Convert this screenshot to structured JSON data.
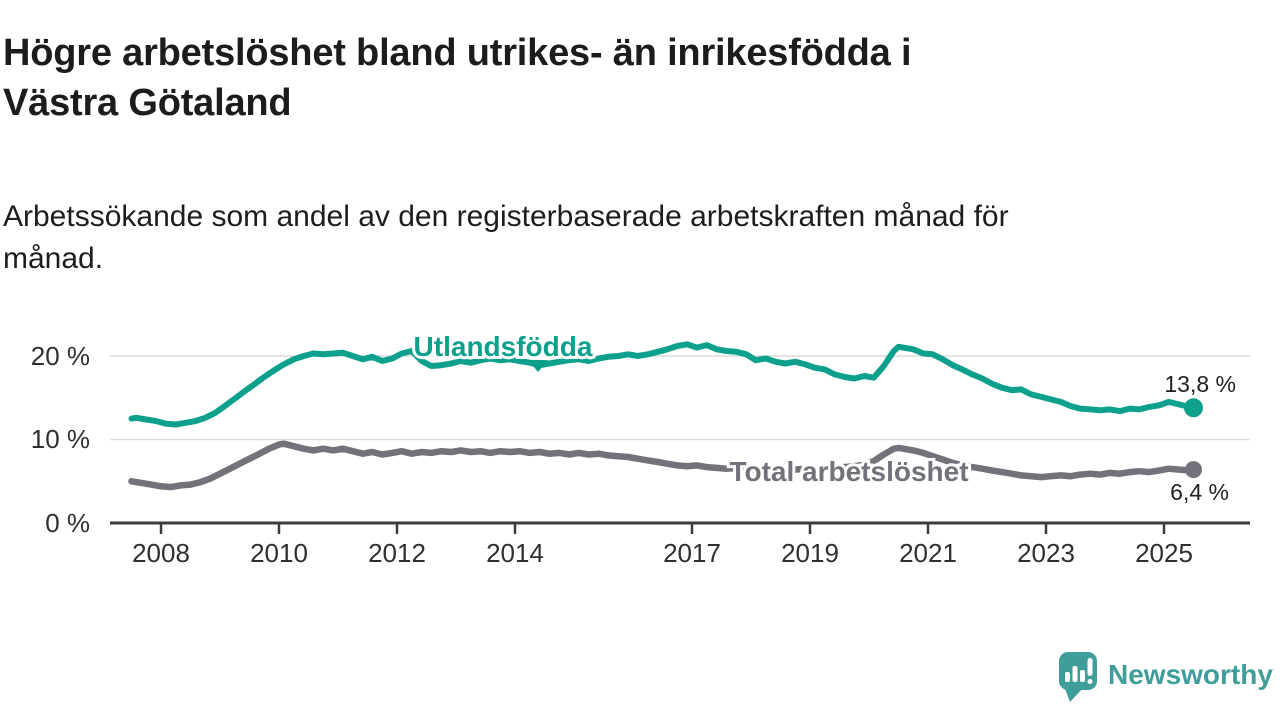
{
  "title": "Högre arbetslöshet bland utrikes- än inrikesfödda i Västra Götaland",
  "title_lines": [
    "Högre arbetslöshet bland utrikes- än inrikesfödda i",
    "Västra Götaland"
  ],
  "subtitle": "Arbetssökande som andel av den registerbaserade arbetskraften månad för månad.",
  "subtitle_lines": [
    "Arbetssökande som andel av den registerbaserade arbetskraften månad för",
    "månad."
  ],
  "branding": {
    "name": "Newsworthy",
    "logo_color": "#3f9e99",
    "icon": "bar-chart-speech-bubble-icon"
  },
  "colors": {
    "foreign_born_line": "#0da08d",
    "total_line": "#75717a",
    "grid": "#dcdcdc",
    "axis": "#3c3c3c",
    "text": "#1c1c1c"
  },
  "chart_data": {
    "type": "line",
    "title": "Högre arbetslöshet bland utrikes- än inrikesfödda i Västra Götaland",
    "subtitle": "Arbetssökande som andel av den registerbaserade arbetskraften månad för månad.",
    "xlabel": "",
    "ylabel": "",
    "xlim": [
      2007.5,
      2026.4
    ],
    "ylim": [
      0,
      23.5
    ],
    "grid": "horizontal-only",
    "legend_position": "inline-labels",
    "x_ticks": [
      "2008",
      "2010",
      "2012",
      "2014",
      "2017",
      "2019",
      "2021",
      "2023",
      "2025"
    ],
    "x_tick_years": [
      2008,
      2010,
      2012,
      2014,
      2017,
      2019,
      2021,
      2023,
      2025
    ],
    "y_ticks": [
      {
        "value": 0,
        "label": "0 %"
      },
      {
        "value": 10,
        "label": "10 %"
      },
      {
        "value": 20,
        "label": "20 %"
      }
    ],
    "series": [
      {
        "name": "Utlandsfödda",
        "color": "#0da08d",
        "end_value": 13.8,
        "end_label": "13,8 %",
        "points": [
          [
            2007.5,
            12.5
          ],
          [
            2007.58,
            12.6
          ],
          [
            2007.75,
            12.4
          ],
          [
            2007.92,
            12.2
          ],
          [
            2008.08,
            11.9
          ],
          [
            2008.25,
            11.8
          ],
          [
            2008.42,
            12.0
          ],
          [
            2008.58,
            12.2
          ],
          [
            2008.75,
            12.6
          ],
          [
            2008.92,
            13.2
          ],
          [
            2009.08,
            14.0
          ],
          [
            2009.25,
            14.9
          ],
          [
            2009.42,
            15.8
          ],
          [
            2009.58,
            16.6
          ],
          [
            2009.75,
            17.5
          ],
          [
            2009.92,
            18.3
          ],
          [
            2010.08,
            19.0
          ],
          [
            2010.25,
            19.6
          ],
          [
            2010.42,
            20.0
          ],
          [
            2010.58,
            20.3
          ],
          [
            2010.75,
            20.2
          ],
          [
            2010.92,
            20.3
          ],
          [
            2011.08,
            20.4
          ],
          [
            2011.25,
            20.0
          ],
          [
            2011.42,
            19.6
          ],
          [
            2011.58,
            19.9
          ],
          [
            2011.75,
            19.4
          ],
          [
            2011.92,
            19.7
          ],
          [
            2012.08,
            20.3
          ],
          [
            2012.25,
            20.6
          ],
          [
            2012.42,
            19.4
          ],
          [
            2012.58,
            18.8
          ],
          [
            2012.75,
            18.9
          ],
          [
            2012.92,
            19.1
          ],
          [
            2013.08,
            19.4
          ],
          [
            2013.25,
            19.2
          ],
          [
            2013.42,
            19.5
          ],
          [
            2013.58,
            19.7
          ],
          [
            2013.75,
            19.5
          ],
          [
            2013.92,
            19.6
          ],
          [
            2014.08,
            19.4
          ],
          [
            2014.25,
            19.2
          ],
          [
            2014.42,
            18.9
          ],
          [
            2014.58,
            19.1
          ],
          [
            2014.75,
            19.3
          ],
          [
            2014.92,
            19.5
          ],
          [
            2015.08,
            19.6
          ],
          [
            2015.25,
            19.4
          ],
          [
            2015.42,
            19.7
          ],
          [
            2015.58,
            19.9
          ],
          [
            2015.75,
            20.0
          ],
          [
            2015.92,
            20.2
          ],
          [
            2016.08,
            20.0
          ],
          [
            2016.25,
            20.2
          ],
          [
            2016.42,
            20.5
          ],
          [
            2016.58,
            20.8
          ],
          [
            2016.75,
            21.2
          ],
          [
            2016.92,
            21.4
          ],
          [
            2017.08,
            21.0
          ],
          [
            2017.25,
            21.3
          ],
          [
            2017.42,
            20.8
          ],
          [
            2017.58,
            20.6
          ],
          [
            2017.75,
            20.5
          ],
          [
            2017.92,
            20.2
          ],
          [
            2018.08,
            19.5
          ],
          [
            2018.25,
            19.7
          ],
          [
            2018.42,
            19.3
          ],
          [
            2018.58,
            19.1
          ],
          [
            2018.75,
            19.3
          ],
          [
            2018.92,
            19.0
          ],
          [
            2019.08,
            18.6
          ],
          [
            2019.25,
            18.4
          ],
          [
            2019.42,
            17.8
          ],
          [
            2019.58,
            17.5
          ],
          [
            2019.75,
            17.3
          ],
          [
            2019.92,
            17.6
          ],
          [
            2020.08,
            17.4
          ],
          [
            2020.25,
            18.8
          ],
          [
            2020.42,
            20.6
          ],
          [
            2020.5,
            21.1
          ],
          [
            2020.58,
            21.0
          ],
          [
            2020.75,
            20.8
          ],
          [
            2020.92,
            20.3
          ],
          [
            2021.08,
            20.2
          ],
          [
            2021.25,
            19.6
          ],
          [
            2021.42,
            18.9
          ],
          [
            2021.58,
            18.4
          ],
          [
            2021.75,
            17.8
          ],
          [
            2021.92,
            17.3
          ],
          [
            2022.08,
            16.7
          ],
          [
            2022.25,
            16.2
          ],
          [
            2022.42,
            15.9
          ],
          [
            2022.58,
            16.0
          ],
          [
            2022.75,
            15.4
          ],
          [
            2022.92,
            15.1
          ],
          [
            2023.08,
            14.8
          ],
          [
            2023.25,
            14.5
          ],
          [
            2023.42,
            14.0
          ],
          [
            2023.58,
            13.7
          ],
          [
            2023.75,
            13.6
          ],
          [
            2023.92,
            13.5
          ],
          [
            2024.08,
            13.6
          ],
          [
            2024.25,
            13.4
          ],
          [
            2024.42,
            13.7
          ],
          [
            2024.58,
            13.6
          ],
          [
            2024.75,
            13.9
          ],
          [
            2024.92,
            14.1
          ],
          [
            2025.08,
            14.5
          ],
          [
            2025.25,
            14.2
          ],
          [
            2025.42,
            13.9
          ],
          [
            2025.5,
            13.8
          ]
        ]
      },
      {
        "name": "Total arbetslöshet",
        "color": "#75717a",
        "end_value": 6.4,
        "end_label": "6,4 %",
        "points": [
          [
            2007.5,
            5.0
          ],
          [
            2007.67,
            4.8
          ],
          [
            2007.83,
            4.6
          ],
          [
            2008.0,
            4.4
          ],
          [
            2008.17,
            4.3
          ],
          [
            2008.33,
            4.5
          ],
          [
            2008.5,
            4.6
          ],
          [
            2008.67,
            4.9
          ],
          [
            2008.83,
            5.3
          ],
          [
            2009.0,
            5.9
          ],
          [
            2009.17,
            6.5
          ],
          [
            2009.33,
            7.1
          ],
          [
            2009.5,
            7.7
          ],
          [
            2009.67,
            8.3
          ],
          [
            2009.83,
            8.9
          ],
          [
            2010.0,
            9.4
          ],
          [
            2010.08,
            9.5
          ],
          [
            2010.25,
            9.2
          ],
          [
            2010.42,
            8.9
          ],
          [
            2010.58,
            8.7
          ],
          [
            2010.75,
            8.9
          ],
          [
            2010.92,
            8.7
          ],
          [
            2011.08,
            8.9
          ],
          [
            2011.25,
            8.6
          ],
          [
            2011.42,
            8.3
          ],
          [
            2011.58,
            8.5
          ],
          [
            2011.75,
            8.2
          ],
          [
            2011.92,
            8.4
          ],
          [
            2012.08,
            8.6
          ],
          [
            2012.25,
            8.3
          ],
          [
            2012.42,
            8.5
          ],
          [
            2012.58,
            8.4
          ],
          [
            2012.75,
            8.6
          ],
          [
            2012.92,
            8.5
          ],
          [
            2013.08,
            8.7
          ],
          [
            2013.25,
            8.5
          ],
          [
            2013.42,
            8.6
          ],
          [
            2013.58,
            8.4
          ],
          [
            2013.75,
            8.6
          ],
          [
            2013.92,
            8.5
          ],
          [
            2014.08,
            8.6
          ],
          [
            2014.25,
            8.4
          ],
          [
            2014.42,
            8.5
          ],
          [
            2014.58,
            8.3
          ],
          [
            2014.75,
            8.4
          ],
          [
            2014.92,
            8.2
          ],
          [
            2015.08,
            8.4
          ],
          [
            2015.25,
            8.2
          ],
          [
            2015.42,
            8.3
          ],
          [
            2015.58,
            8.1
          ],
          [
            2015.75,
            8.0
          ],
          [
            2015.92,
            7.9
          ],
          [
            2016.08,
            7.7
          ],
          [
            2016.25,
            7.5
          ],
          [
            2016.42,
            7.3
          ],
          [
            2016.58,
            7.1
          ],
          [
            2016.75,
            6.9
          ],
          [
            2016.92,
            6.8
          ],
          [
            2017.08,
            6.9
          ],
          [
            2017.25,
            6.7
          ],
          [
            2017.42,
            6.6
          ],
          [
            2017.58,
            6.5
          ],
          [
            2017.75,
            6.6
          ],
          [
            2017.92,
            6.5
          ],
          [
            2018.08,
            6.4
          ],
          [
            2018.25,
            6.3
          ],
          [
            2018.42,
            6.4
          ],
          [
            2018.58,
            6.3
          ],
          [
            2018.75,
            6.4
          ],
          [
            2018.92,
            6.5
          ],
          [
            2019.08,
            6.4
          ],
          [
            2019.25,
            6.5
          ],
          [
            2019.42,
            6.6
          ],
          [
            2019.58,
            6.7
          ],
          [
            2019.75,
            6.8
          ],
          [
            2019.92,
            7.0
          ],
          [
            2020.08,
            7.4
          ],
          [
            2020.25,
            8.2
          ],
          [
            2020.42,
            8.9
          ],
          [
            2020.5,
            9.0
          ],
          [
            2020.58,
            8.9
          ],
          [
            2020.75,
            8.7
          ],
          [
            2020.92,
            8.4
          ],
          [
            2021.08,
            8.0
          ],
          [
            2021.25,
            7.6
          ],
          [
            2021.42,
            7.2
          ],
          [
            2021.58,
            6.9
          ],
          [
            2021.75,
            6.7
          ],
          [
            2021.92,
            6.5
          ],
          [
            2022.08,
            6.3
          ],
          [
            2022.25,
            6.1
          ],
          [
            2022.42,
            5.9
          ],
          [
            2022.58,
            5.7
          ],
          [
            2022.75,
            5.6
          ],
          [
            2022.92,
            5.5
          ],
          [
            2023.08,
            5.6
          ],
          [
            2023.25,
            5.7
          ],
          [
            2023.42,
            5.6
          ],
          [
            2023.58,
            5.8
          ],
          [
            2023.75,
            5.9
          ],
          [
            2023.92,
            5.8
          ],
          [
            2024.08,
            6.0
          ],
          [
            2024.25,
            5.9
          ],
          [
            2024.42,
            6.1
          ],
          [
            2024.58,
            6.2
          ],
          [
            2024.75,
            6.1
          ],
          [
            2024.92,
            6.3
          ],
          [
            2025.08,
            6.5
          ],
          [
            2025.25,
            6.4
          ],
          [
            2025.42,
            6.3
          ],
          [
            2025.5,
            6.4
          ]
        ]
      }
    ]
  }
}
